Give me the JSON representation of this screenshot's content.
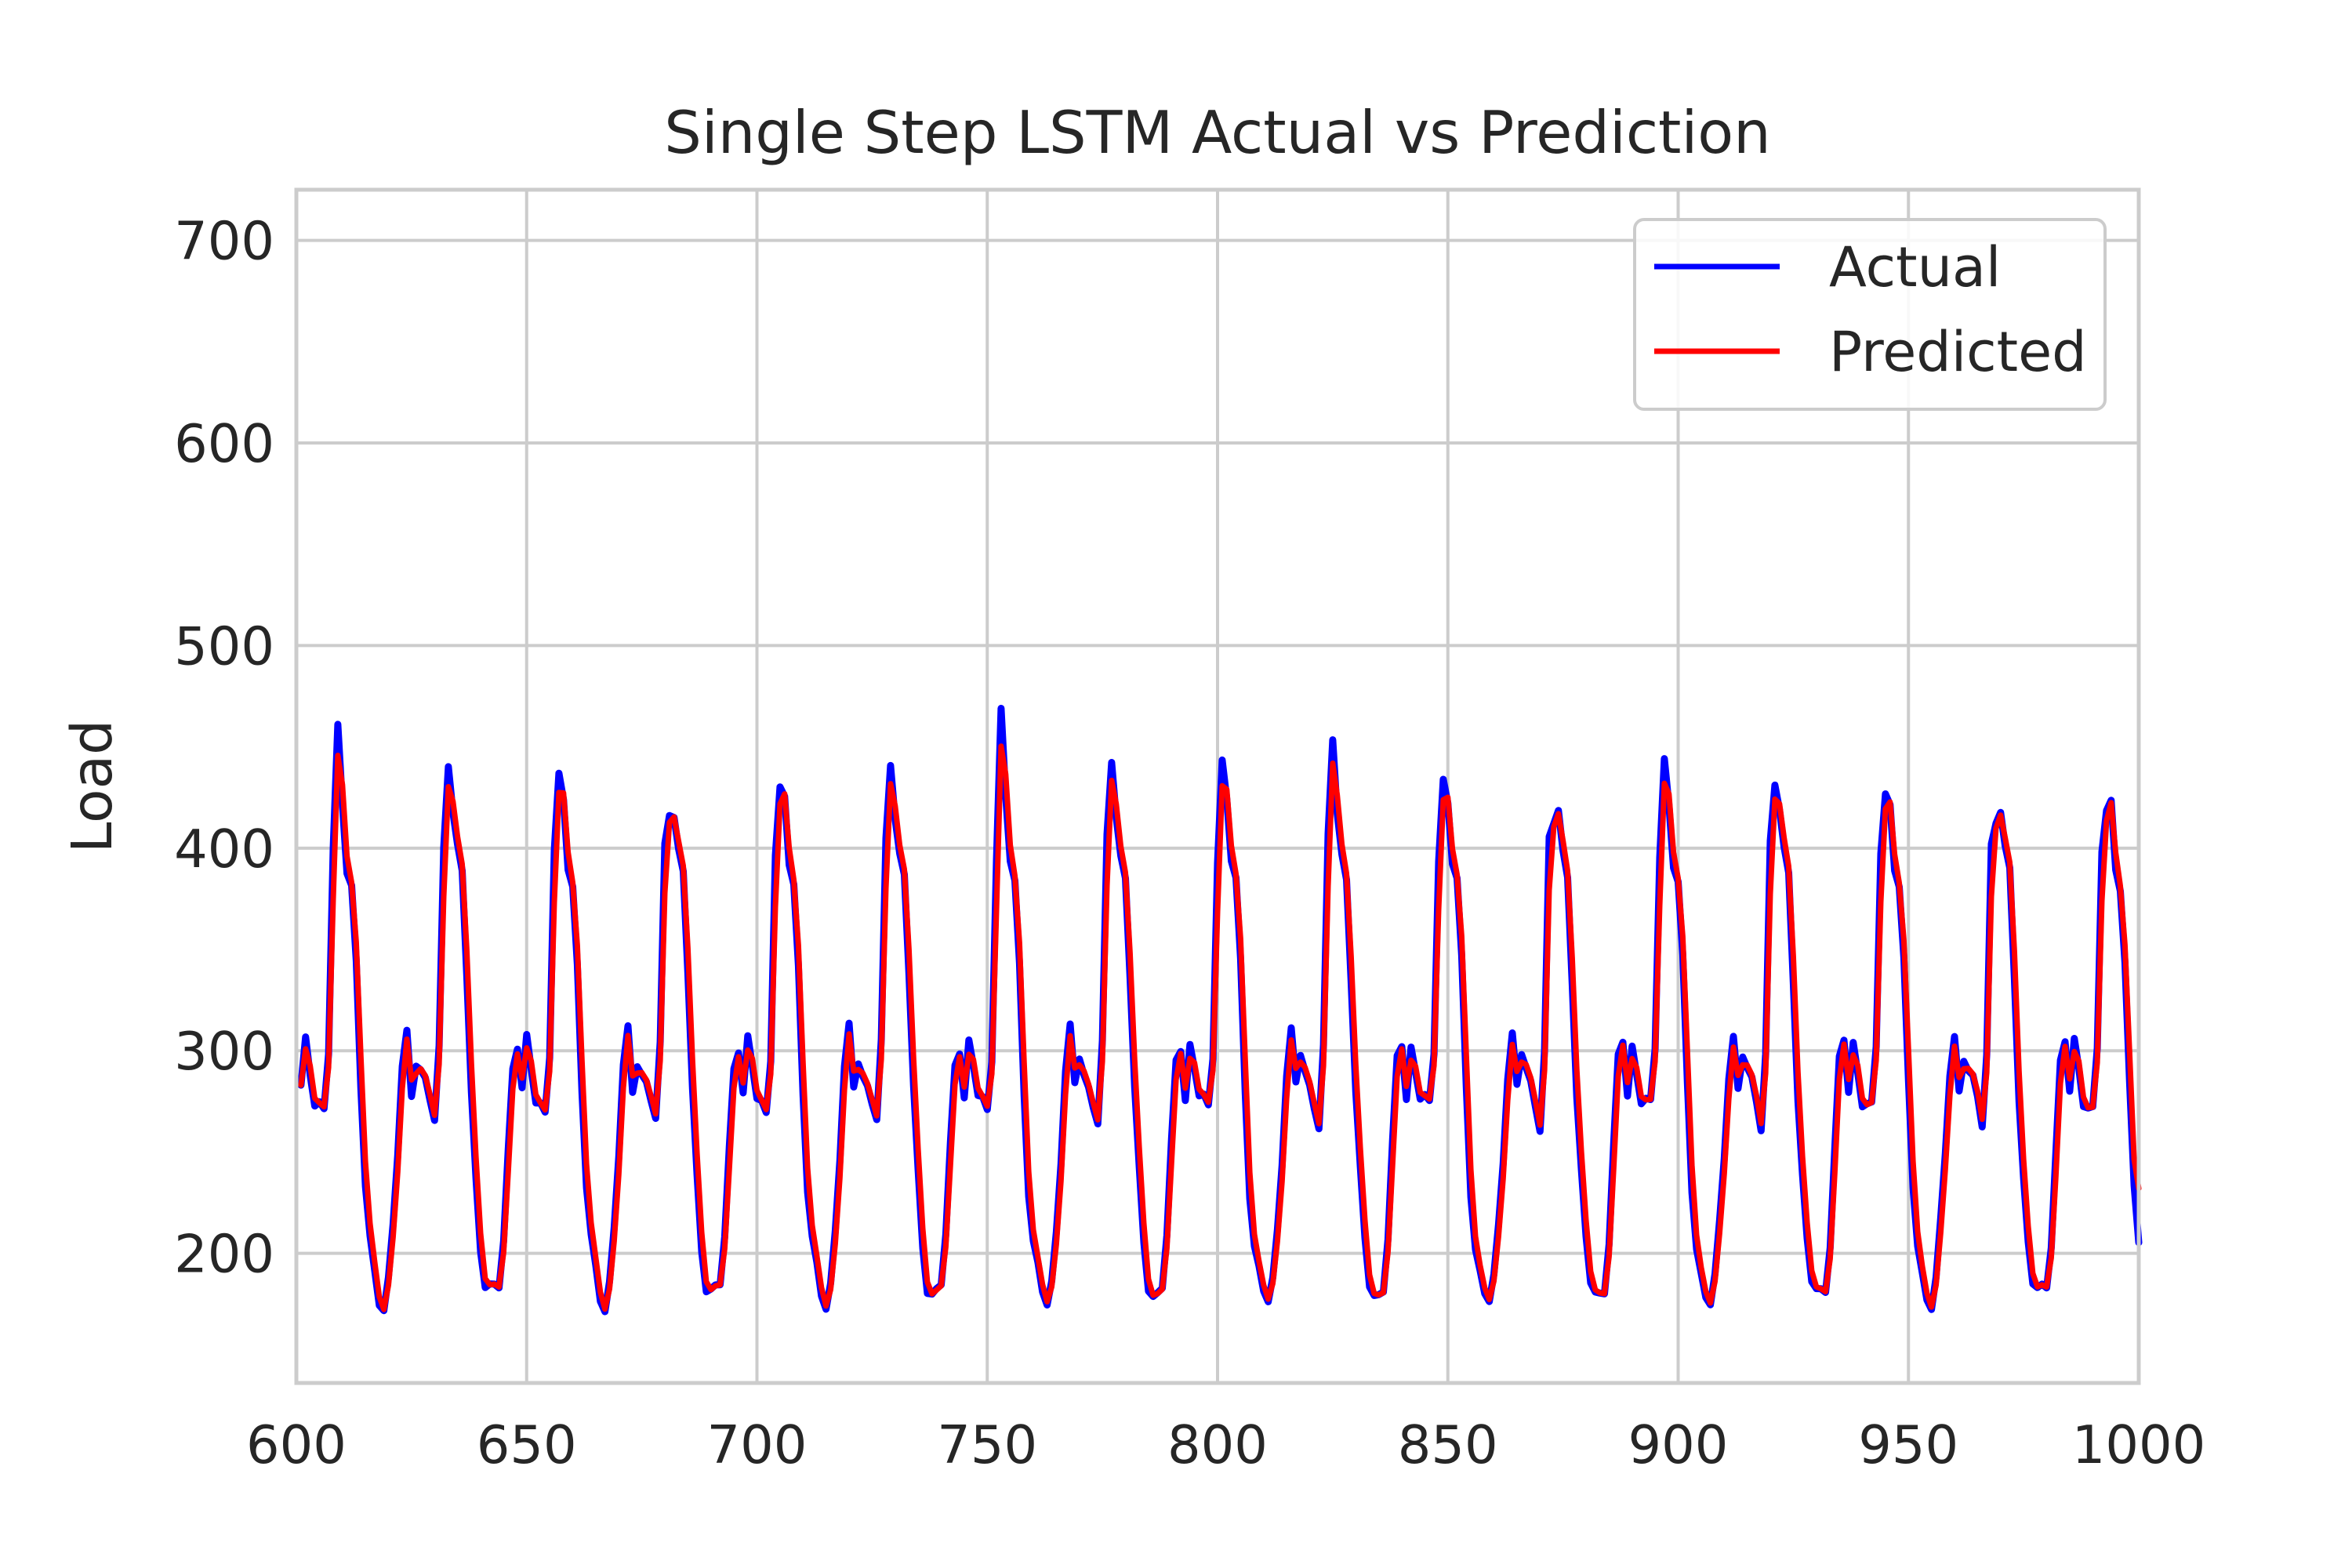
{
  "chart_data": {
    "type": "line",
    "title": "Single Step LSTM Actual vs Prediction",
    "xlabel": "",
    "ylabel": "Load",
    "xlim": [
      600,
      1000
    ],
    "ylim": [
      136,
      725
    ],
    "xticks": [
      600,
      650,
      700,
      750,
      800,
      850,
      900,
      950,
      1000
    ],
    "yticks": [
      200,
      300,
      400,
      500,
      600,
      700
    ],
    "grid": true,
    "legend_position": "top-right",
    "peaks": [
      455,
      447,
      430,
      423,
      424,
      446,
      465,
      445,
      442,
      454,
      434,
      412,
      444,
      432,
      425,
      415
    ],
    "x_start": 601,
    "x_end": 1000,
    "series": [
      {
        "name": "Actual",
        "color": "#0000ff",
        "y": []
      },
      {
        "name": "Predicted",
        "color": "#ff0000",
        "y": []
      }
    ]
  }
}
